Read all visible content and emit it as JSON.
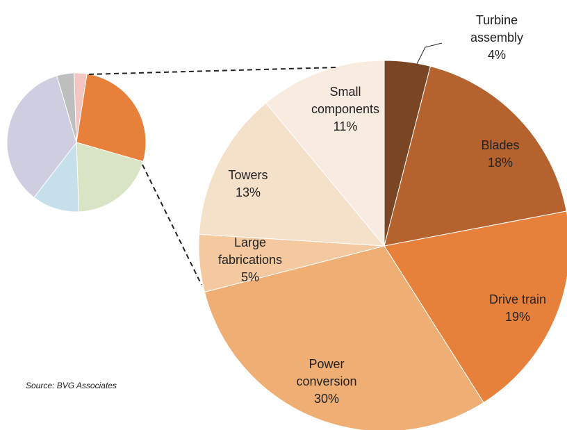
{
  "chart_data": [
    {
      "type": "pie",
      "categories": [
        null,
        null,
        null,
        null,
        null,
        null
      ],
      "values": [
        3,
        27,
        20,
        11,
        35,
        4
      ],
      "colors": [
        "#f2c4c2",
        "#e7803a",
        "#d8e4c4",
        "#c5e0ea",
        "#cfcde0",
        "#bcbfbd"
      ]
    },
    {
      "type": "pie",
      "categories": [
        "Turbine assembly",
        "Blades",
        "Drive train",
        "Power conversion",
        "Large fabrications",
        "Towers",
        "Small components"
      ],
      "values": [
        4,
        18,
        19,
        30,
        5,
        13,
        11
      ],
      "value_labels": [
        "4%",
        "18%",
        "19%",
        "30%",
        "5%",
        "13%",
        "11%"
      ],
      "colors": [
        "#7a4522",
        "#b5622e",
        "#e7803a",
        "#eeae74",
        "#f4c9a0",
        "#f5e0ca",
        "#f8ebdf"
      ],
      "source": "Source: BVG Associates"
    }
  ]
}
